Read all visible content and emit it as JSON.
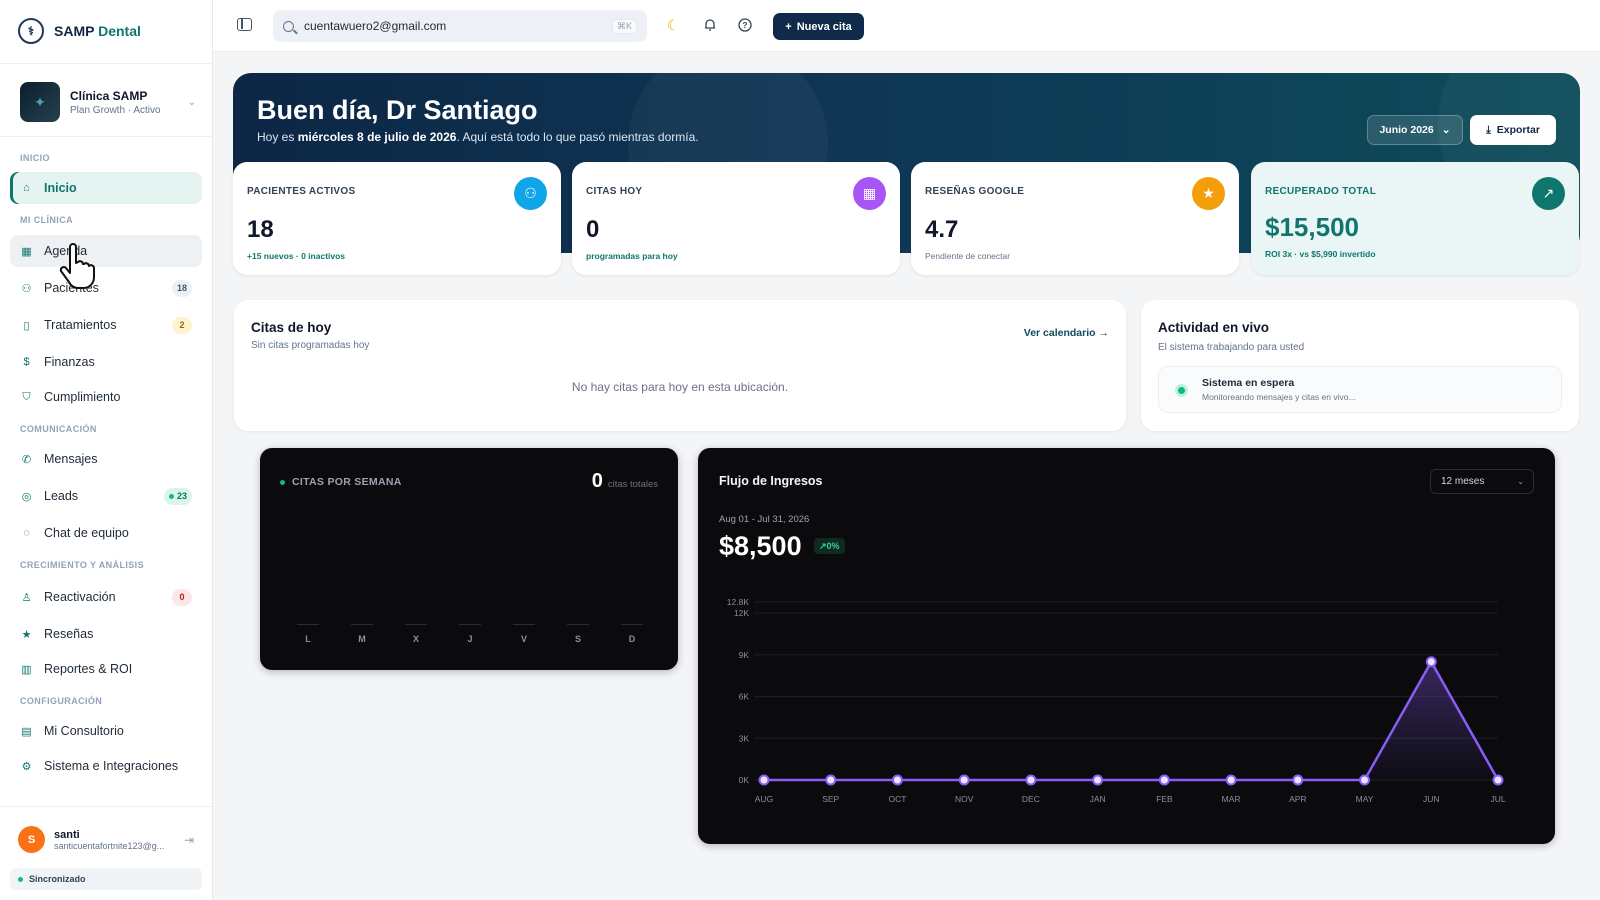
{
  "brand": {
    "name_main": "SAMP",
    "name_accent": "Dental"
  },
  "clinic": {
    "name": "Clínica SAMP",
    "plan": "Plan Growth · Activo"
  },
  "nav": {
    "sections": {
      "inicio": "INICIO",
      "mi_clinica": "MI CLÍNICA",
      "comunicacion": "COMUNICACIÓN",
      "crecimiento": "CRECIMIENTO Y ANÁLISIS",
      "configuracion": "CONFIGURACIÓN"
    },
    "items": {
      "inicio": "Inicio",
      "agenda": "Agenda",
      "pacientes": "Pacientes",
      "pacientes_badge": "18",
      "tratamientos": "Tratamientos",
      "tratamientos_badge": "2",
      "finanzas": "Finanzas",
      "cumplimiento": "Cumplimiento",
      "mensajes": "Mensajes",
      "leads": "Leads",
      "leads_badge": "23",
      "chat": "Chat de equipo",
      "reactivacion": "Reactivación",
      "reactivacion_badge": "0",
      "resenas": "Reseñas",
      "reportes": "Reportes & ROI",
      "consultorio": "Mi Consultorio",
      "sistema": "Sistema e Integraciones"
    }
  },
  "user": {
    "initial": "S",
    "name": "santi",
    "email": "santicuentafortnite123@g...",
    "sync_status": "Sincronizado"
  },
  "topbar": {
    "search_value": "cuentawuero2@gmail.com",
    "shortcut": "⌘K",
    "new_button": "Nueva cita"
  },
  "hero": {
    "greeting": "Buen día, Dr Santiago",
    "sub_prefix": "Hoy es ",
    "sub_date": "miércoles 8 de julio de 2026",
    "sub_suffix": ". Aquí está todo lo que pasó mientras dormía.",
    "month": "Junio 2026",
    "export": "Exportar"
  },
  "stats": [
    {
      "label": "PACIENTES ACTIVOS",
      "value": "18",
      "note": "+15 nuevos · 0 inactivos",
      "icon": "users-icon",
      "color": "#0ea5e9"
    },
    {
      "label": "CITAS HOY",
      "value": "0",
      "note": "programadas para hoy",
      "icon": "calendar-icon",
      "color": "#a855f7"
    },
    {
      "label": "RESEÑAS GOOGLE",
      "value": "4.7",
      "note": "Pendiente de conectar",
      "icon": "star-icon",
      "color": "#f59e0b"
    },
    {
      "label": "RECUPERADO TOTAL",
      "value": "$15,500",
      "note": "ROI 3x · vs $5,990 invertido",
      "icon": "trending-up-icon",
      "color": "#0f766e"
    }
  ],
  "citas_hoy": {
    "title": "Citas de hoy",
    "subtitle": "Sin citas programadas hoy",
    "link": "Ver calendario →",
    "empty": "No hay citas para hoy en esta ubicación."
  },
  "actividad": {
    "title": "Actividad en vivo",
    "subtitle": "El sistema trabajando para usted",
    "status_title": "Sistema en espera",
    "status_sub": "Monitoreando mensajes y citas en vivo..."
  },
  "weekly": {
    "label": "CITAS POR SEMANA",
    "total": "0",
    "unit": "citas totales",
    "days": [
      "L",
      "M",
      "X",
      "J",
      "V",
      "S",
      "D"
    ]
  },
  "flow": {
    "title": "Flujo de Ingresos",
    "range_option": "12 meses",
    "date_range": "Aug 01 - Jul 31, 2026",
    "total": "$8,500",
    "change": "↗0%"
  },
  "chart_data": {
    "type": "line",
    "categories": [
      "AUG",
      "SEP",
      "OCT",
      "NOV",
      "DEC",
      "JAN",
      "FEB",
      "MAR",
      "APR",
      "MAY",
      "JUN",
      "JUL"
    ],
    "values": [
      0,
      0,
      0,
      0,
      0,
      0,
      0,
      0,
      0,
      0,
      8500,
      0
    ],
    "yticks": [
      "0K",
      "3K",
      "6K",
      "9K",
      "12K",
      "12.8K"
    ],
    "ytick_values": [
      0,
      3000,
      6000,
      9000,
      12000,
      12800
    ],
    "ylim": [
      0,
      12800
    ],
    "grid": true,
    "line_color": "#8b5cf6"
  }
}
